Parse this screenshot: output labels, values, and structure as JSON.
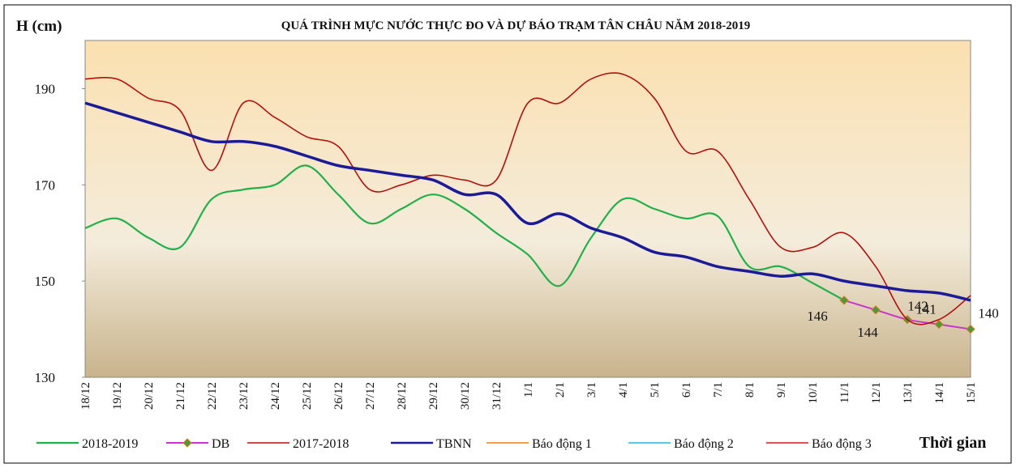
{
  "chart_data": {
    "type": "line",
    "title": "QUÁ TRÌNH MỰC NƯỚC THỰC ĐO VÀ DỰ BÁO TRẠM TÂN CHÂU NĂM 2018-2019",
    "y_label": "H (cm)",
    "x_label": "Thời gian",
    "categories": [
      "18/12",
      "19/12",
      "20/12",
      "21/12",
      "22/12",
      "23/12",
      "24/12",
      "25/12",
      "26/12",
      "27/12",
      "28/12",
      "29/12",
      "30/12",
      "31/12",
      "1/1",
      "2/1",
      "3/1",
      "4/1",
      "5/1",
      "6/1",
      "7/1",
      "8/1",
      "9/1",
      "10/1",
      "11/1",
      "12/1",
      "13/1",
      "14/1",
      "15/1"
    ],
    "ylim": [
      130,
      200
    ],
    "yticks": [
      130,
      150,
      170,
      190
    ],
    "series": [
      {
        "name": "2018-2019",
        "color": "#22b04b",
        "line_width": 2.2,
        "values": [
          161,
          163,
          159,
          157,
          167,
          169,
          170,
          174,
          168,
          162,
          165,
          168,
          165,
          160,
          155.5,
          149,
          159,
          167,
          165,
          163,
          163.5,
          153,
          153,
          149.6,
          146,
          null,
          null,
          null,
          null
        ]
      },
      {
        "name": "DB",
        "color": "#cc33cc",
        "marker": "diamond",
        "marker_color": "#4a9a3c",
        "line_width": 2,
        "values": [
          null,
          null,
          null,
          null,
          null,
          null,
          null,
          null,
          null,
          null,
          null,
          null,
          null,
          null,
          null,
          null,
          null,
          null,
          null,
          null,
          null,
          null,
          null,
          null,
          146,
          144,
          142,
          141,
          140
        ],
        "value_labels": [
          null,
          null,
          null,
          null,
          null,
          null,
          null,
          null,
          null,
          null,
          null,
          null,
          null,
          null,
          null,
          null,
          null,
          null,
          null,
          null,
          null,
          null,
          null,
          null,
          "146",
          "144",
          "142",
          "141",
          "140"
        ]
      },
      {
        "name": "2017-2018",
        "color": "#b0100e",
        "line_width": 1.6,
        "values": [
          192,
          192,
          188,
          185.5,
          173,
          187,
          184,
          180,
          178,
          169,
          170,
          172,
          171,
          171,
          187,
          187,
          192,
          193,
          188,
          177,
          177,
          167,
          157,
          157,
          160,
          153,
          142,
          142,
          147
        ]
      },
      {
        "name": "TBNN",
        "color": "#1a1a9a",
        "line_width": 3.5,
        "values": [
          187,
          185,
          183,
          181,
          179,
          179,
          178,
          176,
          174,
          173,
          172,
          171,
          168,
          168,
          162,
          164,
          161,
          159,
          156,
          155,
          153,
          152,
          151,
          151.5,
          150,
          149,
          148,
          147.5,
          146
        ]
      },
      {
        "name": "Báo động 1",
        "color": "#e8821e",
        "line_width": 1.6
      },
      {
        "name": "Báo động 2",
        "color": "#2ab0d8",
        "line_width": 1.6
      },
      {
        "name": "Báo động 3",
        "color": "#cc1a1a",
        "line_width": 1.6
      }
    ]
  }
}
